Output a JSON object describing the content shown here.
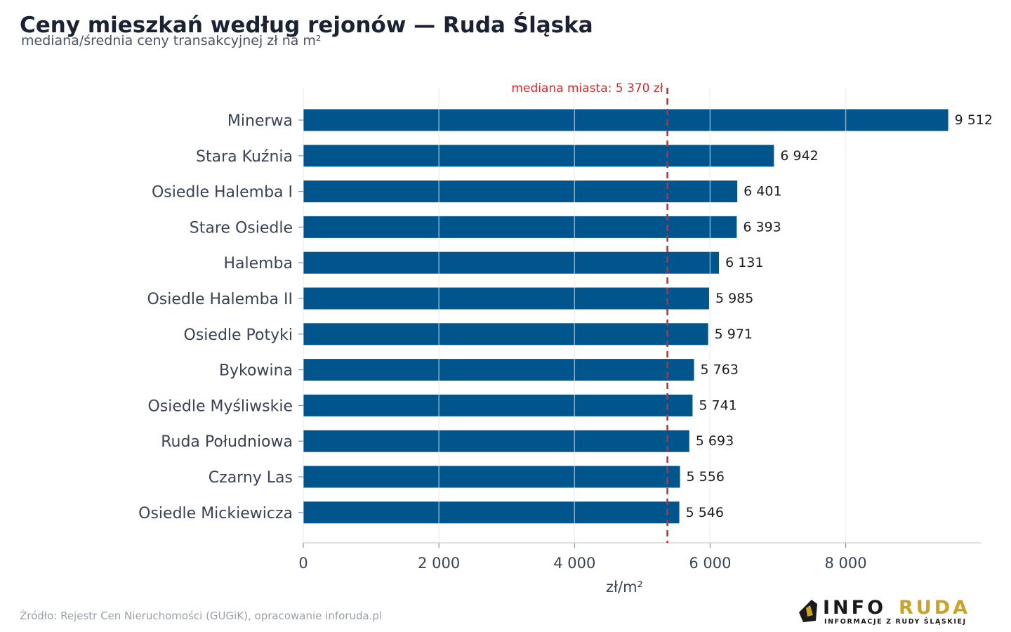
{
  "title": "Ceny mieszkań według rejonów — Ruda Śląska",
  "subtitle": "mediana/średnia ceny transakcyjnej zł na m²",
  "source": "Źródło: Rejestr Cen Nieruchomości (GUGiK), opracowanie inforuda.pl",
  "logo": {
    "word_main": "INFO",
    "word_accent": "RUDA",
    "tagline": "INFORMACJE Z RUDY ŚLĄSKIEJ",
    "color_main": "#1a1a1a",
    "color_accent": "#c9a227"
  },
  "chart_data": {
    "type": "bar",
    "orientation": "horizontal",
    "categories": [
      "Minerwa",
      "Stara Kuźnia",
      "Osiedle Halemba I",
      "Stare Osiedle",
      "Halemba",
      "Osiedle Halemba II",
      "Osiedle Potyki",
      "Bykowina",
      "Osiedle Myśliwskie",
      "Ruda Południowa",
      "Czarny Las",
      "Osiedle Mickiewicza"
    ],
    "values": [
      9512,
      6942,
      6401,
      6393,
      6131,
      5985,
      5971,
      5763,
      5741,
      5693,
      5556,
      5546
    ],
    "value_labels": [
      "9 512",
      "6 942",
      "6 401",
      "6 393",
      "6 131",
      "5 985",
      "5 971",
      "5 763",
      "5 741",
      "5 693",
      "5 556",
      "5 546"
    ],
    "xlabel": "zł/m²",
    "xlim": [
      0,
      10000
    ],
    "xticks": [
      0,
      2000,
      4000,
      6000,
      8000
    ],
    "xtick_labels": [
      "0",
      "2 000",
      "4 000",
      "6 000",
      "8 000"
    ],
    "grid": true,
    "bar_color": "#00558c",
    "reference_line": {
      "value": 5370,
      "label": "mediana miasta: 5 370 zł",
      "color": "#d7262a",
      "style": "dashed"
    }
  }
}
